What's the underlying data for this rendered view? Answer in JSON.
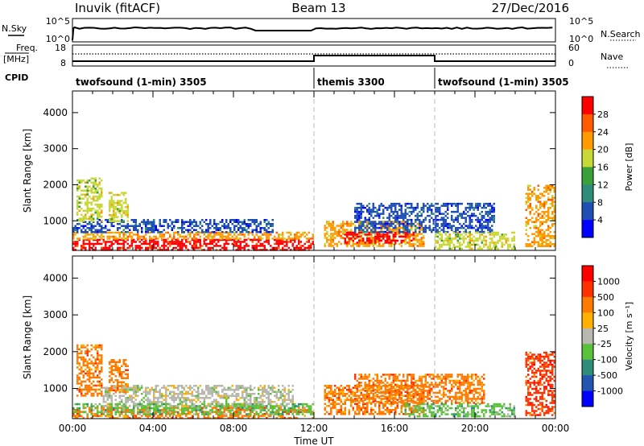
{
  "header": {
    "station": "Inuvik (fitACF)",
    "beam": "Beam 13",
    "date": "27/Dec/2016"
  },
  "nsky_panel": {
    "left_label": "N.Sky",
    "right_label": "N.Search",
    "ytick_top": "10^5",
    "ytick_bottom": "10^0",
    "level_fraction": 0.55
  },
  "freq_panel": {
    "left_label_line1": "Freq.",
    "left_label_line2": "[MHz]",
    "right_label": "Nave",
    "left_ticks": [
      "18",
      "8"
    ],
    "right_ticks": [
      "60",
      "0"
    ]
  },
  "cpid_panel": {
    "label": "CPID",
    "segments": [
      {
        "name": "twofsound (1-min) 3505",
        "start_hour": 0
      },
      {
        "name": "themis 3300",
        "start_hour": 12
      },
      {
        "name": "twofsound (1-min) 3505",
        "start_hour": 18
      }
    ]
  },
  "x_axis": {
    "label": "Time UT",
    "ticks": [
      "00:00",
      "04:00",
      "08:00",
      "12:00",
      "16:00",
      "20:00",
      "00:00"
    ],
    "range_hours": [
      0,
      24
    ]
  },
  "chart_data": [
    {
      "type": "heatmap",
      "title": "",
      "ylabel": "Slant Range [km]",
      "yticks": [
        1000,
        2000,
        3000,
        4000
      ],
      "ylim": [
        180,
        4600
      ],
      "colorbar": {
        "label": "Power [dB]",
        "ticks": [
          4,
          8,
          12,
          16,
          20,
          24,
          28
        ]
      },
      "colors": [
        "#0000ff",
        "#1f4fb5",
        "#2f8c7a",
        "#3aa03a",
        "#c8d836",
        "#ff9a00",
        "#ff5a00",
        "#ff0000"
      ],
      "regions": [
        {
          "t0": 0.0,
          "t1": 12.0,
          "r0": 200,
          "r1": 500,
          "level": 7
        },
        {
          "t0": 0.0,
          "t1": 12.0,
          "r0": 500,
          "r1": 700,
          "level": 5
        },
        {
          "t0": 0.0,
          "t1": 10.0,
          "r0": 700,
          "r1": 1050,
          "level": 1
        },
        {
          "t0": 0.2,
          "t1": 1.5,
          "r0": 1000,
          "r1": 2200,
          "level": 4
        },
        {
          "t0": 1.8,
          "t1": 2.8,
          "r0": 1000,
          "r1": 1800,
          "level": 4
        },
        {
          "t0": 12.5,
          "t1": 17.5,
          "r0": 300,
          "r1": 1000,
          "level": 5
        },
        {
          "t0": 13.5,
          "t1": 17.0,
          "r0": 400,
          "r1": 700,
          "level": 7
        },
        {
          "t0": 14.0,
          "t1": 21.0,
          "r0": 700,
          "r1": 1500,
          "level": 1
        },
        {
          "t0": 18.0,
          "t1": 22.0,
          "r0": 250,
          "r1": 700,
          "level": 4
        },
        {
          "t0": 22.5,
          "t1": 24.0,
          "r0": 300,
          "r1": 2000,
          "level": 5
        }
      ]
    },
    {
      "type": "heatmap",
      "title": "",
      "ylabel": "Slant Range [km]",
      "yticks": [
        1000,
        2000,
        3000,
        4000
      ],
      "ylim": [
        180,
        4600
      ],
      "colorbar": {
        "label": "Velocity [m s^-1]",
        "ticks": [
          1000,
          500,
          100,
          25,
          -25,
          -100,
          -500,
          -1000
        ]
      },
      "colors": [
        "#0000ff",
        "#2255b0",
        "#2f8c7a",
        "#5ac13a",
        "#b8b8b0",
        "#ffb000",
        "#ff7a00",
        "#ff3000",
        "#ff0000"
      ],
      "regions": [
        {
          "t0": 0.0,
          "t1": 12.0,
          "r0": 200,
          "r1": 500,
          "level": 6
        },
        {
          "t0": 1.5,
          "t1": 11.0,
          "r0": 500,
          "r1": 1100,
          "level": 4
        },
        {
          "t0": 0.0,
          "t1": 12.0,
          "r0": 300,
          "r1": 600,
          "level": 3
        },
        {
          "t0": 0.2,
          "t1": 1.5,
          "r0": 800,
          "r1": 2200,
          "level": 6
        },
        {
          "t0": 1.8,
          "t1": 2.8,
          "r0": 900,
          "r1": 1800,
          "level": 6
        },
        {
          "t0": 12.5,
          "t1": 17.5,
          "r0": 300,
          "r1": 1100,
          "level": 6
        },
        {
          "t0": 14.0,
          "t1": 20.5,
          "r0": 600,
          "r1": 1400,
          "level": 6
        },
        {
          "t0": 16.5,
          "t1": 22.0,
          "r0": 250,
          "r1": 600,
          "level": 3
        },
        {
          "t0": 22.5,
          "t1": 24.0,
          "r0": 300,
          "r1": 2000,
          "level": 7
        }
      ]
    }
  ]
}
